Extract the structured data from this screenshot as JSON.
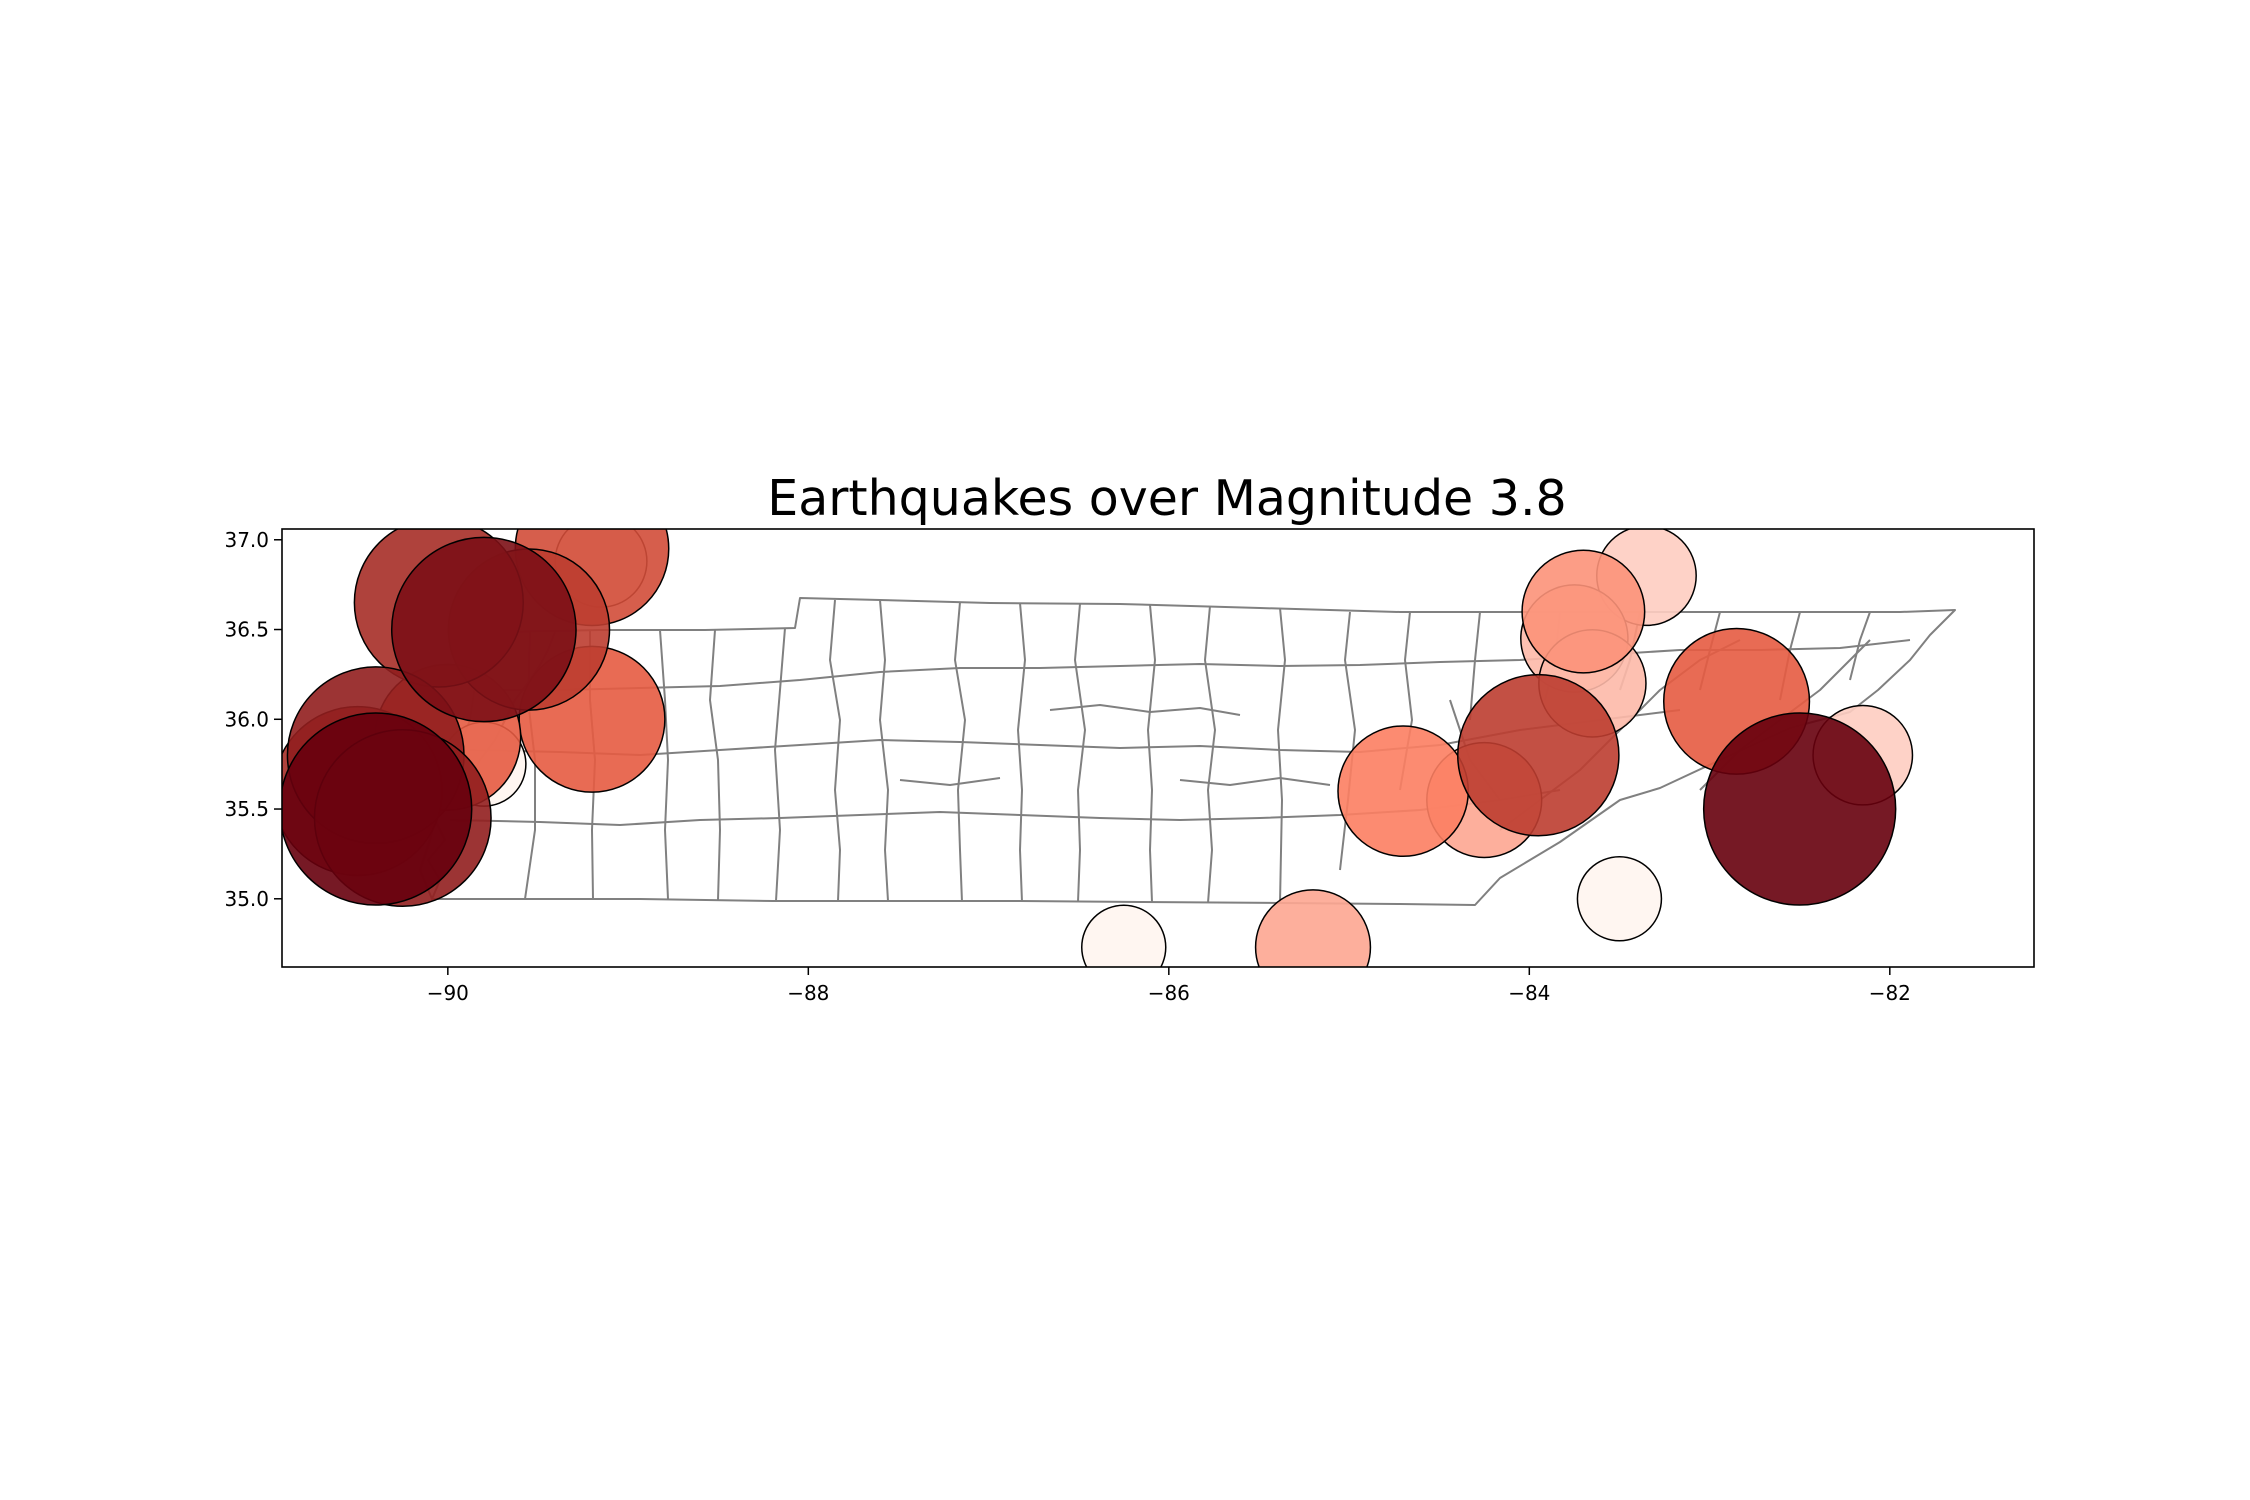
{
  "chart_data": {
    "type": "scatter",
    "title": "Earthquakes over Magnitude 3.8",
    "xlabel": "",
    "ylabel": "",
    "xlim": [
      -90.92,
      -81.2
    ],
    "ylim": [
      34.62,
      37.06
    ],
    "grid": false,
    "legend": "none",
    "x_ticks": [
      -90,
      -88,
      -86,
      -84,
      -82
    ],
    "x_tick_labels": [
      "−90",
      "−88",
      "−86",
      "−84",
      "−82"
    ],
    "y_ticks": [
      35.0,
      35.5,
      36.0,
      36.5,
      37.0
    ],
    "y_tick_labels": [
      "35.0",
      "35.5",
      "36.0",
      "36.5",
      "37.0"
    ],
    "colors": {
      "low": "#fff5f0",
      "mid": "#fb6a4a",
      "high": "#67000d",
      "boundary": "#808080"
    },
    "points": [
      {
        "lon": -89.15,
        "lat": 36.88,
        "magnitude": 3.9
      },
      {
        "lon": -89.2,
        "lat": 36.95,
        "magnitude": 4.7
      },
      {
        "lon": -90.05,
        "lat": 36.65,
        "magnitude": 4.9
      },
      {
        "lon": -89.55,
        "lat": 36.5,
        "magnitude": 4.8
      },
      {
        "lon": -89.8,
        "lat": 36.5,
        "magnitude": 5.1
      },
      {
        "lon": -89.2,
        "lat": 36.0,
        "magnitude": 4.6
      },
      {
        "lon": -89.8,
        "lat": 35.75,
        "magnitude": 3.8
      },
      {
        "lon": -90.0,
        "lat": 35.9,
        "magnitude": 4.6
      },
      {
        "lon": -90.4,
        "lat": 35.8,
        "magnitude": 5.0
      },
      {
        "lon": -90.5,
        "lat": 35.6,
        "magnitude": 4.9
      },
      {
        "lon": -90.25,
        "lat": 35.45,
        "magnitude": 5.0
      },
      {
        "lon": -90.4,
        "lat": 35.5,
        "magnitude": 5.2
      },
      {
        "lon": -83.35,
        "lat": 36.8,
        "magnitude": 4.0
      },
      {
        "lon": -83.7,
        "lat": 36.6,
        "magnitude": 4.3
      },
      {
        "lon": -83.75,
        "lat": 36.45,
        "magnitude": 4.1
      },
      {
        "lon": -83.65,
        "lat": 36.2,
        "magnitude": 4.1
      },
      {
        "lon": -82.85,
        "lat": 36.1,
        "magnitude": 4.6
      },
      {
        "lon": -83.95,
        "lat": 35.8,
        "magnitude": 4.8
      },
      {
        "lon": -84.25,
        "lat": 35.55,
        "magnitude": 4.2
      },
      {
        "lon": -84.7,
        "lat": 35.6,
        "magnitude": 4.4
      },
      {
        "lon": -82.15,
        "lat": 35.8,
        "magnitude": 4.0
      },
      {
        "lon": -82.5,
        "lat": 35.5,
        "magnitude": 5.2
      },
      {
        "lon": -83.5,
        "lat": 35.0,
        "magnitude": 3.8
      },
      {
        "lon": -86.25,
        "lat": 34.73,
        "magnitude": 3.8
      },
      {
        "lon": -85.2,
        "lat": 34.73,
        "magnitude": 4.2
      }
    ]
  }
}
